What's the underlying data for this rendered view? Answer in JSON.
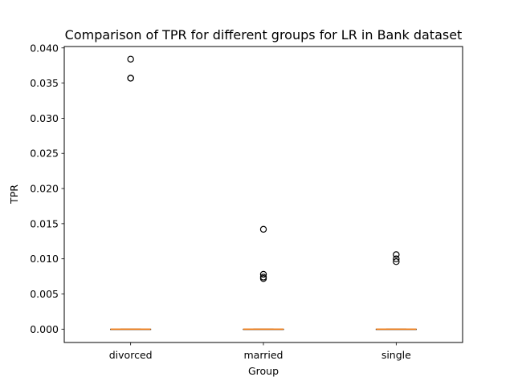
{
  "chart_data": {
    "type": "box",
    "title": "Comparison of TPR for different groups for LR in Bank dataset",
    "xlabel": "Group",
    "ylabel": "TPR",
    "categories": [
      "divorced",
      "married",
      "single"
    ],
    "ylim": [
      -0.0019,
      0.0402
    ],
    "yticks": [
      0.0,
      0.005,
      0.01,
      0.015,
      0.02,
      0.025,
      0.03,
      0.035,
      0.04
    ],
    "ytick_labels": [
      "0.000",
      "0.005",
      "0.010",
      "0.015",
      "0.020",
      "0.025",
      "0.030",
      "0.035",
      "0.040"
    ],
    "grid": false,
    "boxes": [
      {
        "category": "divorced",
        "q1": 0,
        "median": 0,
        "q3": 0,
        "whisker_low": 0,
        "whisker_high": 0,
        "fliers": [
          0.0384,
          0.0357,
          0.0357
        ]
      },
      {
        "category": "married",
        "q1": 0,
        "median": 0,
        "q3": 0,
        "whisker_low": 0,
        "whisker_high": 0,
        "fliers": [
          0.0142,
          0.0078,
          0.0074,
          0.0072
        ]
      },
      {
        "category": "single",
        "q1": 0,
        "median": 0,
        "q3": 0,
        "whisker_low": 0,
        "whisker_high": 0,
        "fliers": [
          0.0106,
          0.01,
          0.0096
        ]
      }
    ],
    "colors": {
      "median": "#ff7f0e",
      "box": "#000000",
      "flier_edge": "#000000"
    }
  }
}
